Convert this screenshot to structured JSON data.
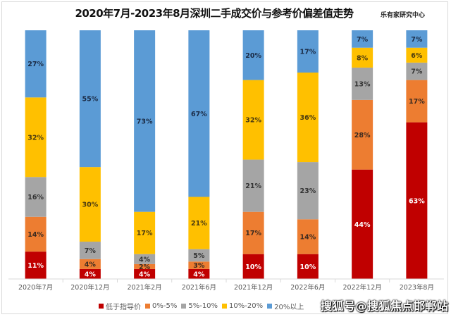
{
  "header": {
    "title": "2020年7月-2023年8月深圳二手成交价与参考价偏差值走势",
    "brand": "乐有家研究中心"
  },
  "watermark_text": "搜狐号@搜狐焦点邯郸站",
  "chart_data": {
    "type": "bar",
    "stacked": true,
    "percent_stacked": true,
    "title": "2020年7月-2023年8月深圳二手成交价与参考价偏差值走势",
    "xlabel": "",
    "ylabel": "",
    "ylim": [
      0,
      100
    ],
    "grid": false,
    "legend_position": "bottom-right",
    "categories": [
      "2020年7月",
      "2020年12月",
      "2021年2月",
      "2021年6月",
      "2021年12月",
      "2022年6月",
      "2022年12月",
      "2023年8月"
    ],
    "series": [
      {
        "name": "低于指导价",
        "color": "#c00000",
        "values": [
          11,
          4,
          4,
          4,
          10,
          10,
          44,
          63
        ]
      },
      {
        "name": "0%-5%",
        "color": "#ed7d31",
        "values": [
          14,
          4,
          2,
          3,
          17,
          14,
          28,
          17
        ]
      },
      {
        "name": "5%-10%",
        "color": "#a5a5a5",
        "values": [
          16,
          7,
          4,
          5,
          21,
          23,
          13,
          7
        ]
      },
      {
        "name": "10%-20%",
        "color": "#ffc000",
        "values": [
          32,
          30,
          17,
          21,
          32,
          36,
          8,
          6
        ]
      },
      {
        "name": "20%以上",
        "color": "#5b9bd5",
        "values": [
          27,
          55,
          73,
          67,
          20,
          17,
          7,
          7
        ]
      }
    ],
    "legend_labels": [
      "低于指导价",
      "0%-5%",
      "5%-10%",
      "10%-20%",
      "20%以上"
    ]
  }
}
